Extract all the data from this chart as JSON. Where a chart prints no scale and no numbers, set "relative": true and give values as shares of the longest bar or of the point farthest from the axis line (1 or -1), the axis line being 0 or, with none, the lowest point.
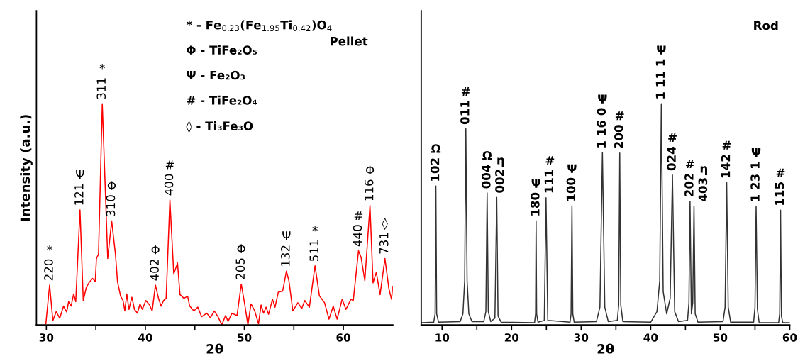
{
  "chart_data": [
    {
      "type": "line",
      "relative": true,
      "title": "Pellet",
      "xlabel": "2θ",
      "ylabel": "Intensity (a.u.)",
      "xlim": [
        29,
        65
      ],
      "xticks": [
        30,
        {
          "value": 35,
          "label": null
        },
        40,
        {
          "value": 45,
          "label": null
        },
        50,
        {
          "value": 55,
          "label": null
        },
        60
      ],
      "tick_labels": "x",
      "series": [
        {
          "color": "#ff0000",
          "x": [
            29.95,
            30.33,
            30.66,
            31.0,
            31.35,
            31.74,
            32.05,
            32.25,
            32.5,
            32.76,
            32.97,
            33.4,
            33.73,
            34.04,
            34.3,
            34.68,
            34.94,
            35.06,
            35.27,
            35.65,
            36.2,
            36.6,
            36.98,
            37.19,
            37.5,
            37.75,
            37.93,
            38.13,
            38.34,
            38.64,
            38.9,
            39.2,
            39.46,
            39.7,
            40.05,
            40.43,
            40.69,
            41.02,
            41.33,
            41.59,
            41.84,
            42.1,
            42.48,
            42.87,
            43.25,
            43.5,
            43.9,
            44.27,
            44.48,
            44.9,
            45.3,
            45.68,
            46.2,
            46.57,
            46.96,
            47.34,
            47.72,
            48.1,
            48.36,
            48.75,
            49.26,
            49.69,
            50.03,
            50.36,
            50.67,
            51.05,
            51.43,
            51.69,
            51.94,
            52.2,
            52.45,
            52.84,
            53.1,
            53.43,
            53.87,
            54.25,
            54.5,
            54.9,
            55.4,
            55.8,
            56.1,
            56.57,
            57.14,
            57.58,
            58.1,
            58.55,
            58.98,
            59.37,
            59.88,
            60.26,
            60.77,
            61.0,
            61.53,
            61.79,
            62.17,
            62.69,
            63.0,
            63.33,
            63.71,
            64.2,
            64.6,
            64.86,
            65.0
          ],
          "values": [
            0.005,
            0.18,
            0.02,
            0.06,
            0.03,
            0.085,
            0.058,
            0.105,
            0.085,
            0.14,
            0.105,
            0.52,
            0.11,
            0.17,
            0.19,
            0.21,
            0.195,
            0.3,
            0.32,
            1.0,
            0.3,
            0.47,
            0.32,
            0.195,
            0.13,
            0.11,
            0.063,
            0.14,
            0.07,
            0.125,
            0.07,
            0.053,
            0.095,
            0.07,
            0.11,
            0.09,
            0.063,
            0.18,
            0.12,
            0.085,
            0.11,
            0.12,
            0.565,
            0.23,
            0.28,
            0.137,
            0.12,
            0.13,
            0.085,
            0.063,
            0.08,
            0.037,
            0.053,
            0.032,
            0.063,
            0.037,
            0.0,
            0.042,
            0.016,
            0.053,
            0.042,
            0.185,
            0.095,
            0.0,
            0.095,
            0.063,
            0.005,
            0.09,
            0.053,
            0.08,
            0.048,
            0.116,
            0.08,
            0.148,
            0.153,
            0.243,
            0.2,
            0.063,
            0.1,
            0.074,
            0.11,
            0.08,
            0.267,
            0.132,
            0.1,
            0.026,
            0.085,
            0.026,
            0.116,
            0.07,
            0.116,
            0.11,
            0.335,
            0.306,
            0.2,
            0.54,
            0.19,
            0.238,
            0.137,
            0.3,
            0.164,
            0.116,
            0.174
          ]
        }
      ],
      "annotations": [
        "* - Fe$_{0.23}$(Fe$_{1.95}$Ti$_{0.42}$)O$_{4}$",
        "Φ - TiFe₂O₅",
        "Ψ - Fe₂O₃",
        "# - TiFe₂O₄",
        "◊ - Ti₃Fe₃O",
        {
          "text": "220",
          "x": 30.33,
          "y": 0.18
        },
        "*",
        {
          "text": "121",
          "x": 33.4,
          "y": 0.52
        },
        "Ψ",
        {
          "text": "311",
          "x": 35.65,
          "y": 1.0
        },
        "*",
        {
          "text": "310",
          "x": 36.6,
          "y": 0.47
        },
        "Φ",
        {
          "text": "402",
          "x": 41.02,
          "y": 0.18
        },
        "Φ",
        {
          "text": "400",
          "x": 42.48,
          "y": 0.565
        },
        "#",
        {
          "text": "205",
          "x": 49.69,
          "y": 0.185
        },
        "Φ",
        {
          "text": "132",
          "x": 54.25,
          "y": 0.243
        },
        "Ψ",
        {
          "text": "511",
          "x": 57.14,
          "y": 0.267
        },
        "*",
        {
          "text": "440",
          "x": 61.53,
          "y": 0.335
        },
        "#",
        {
          "text": "116",
          "x": 62.69,
          "y": 0.54
        },
        "Φ",
        {
          "text": "731",
          "x": 64.2,
          "y": 0.3
        },
        "◊"
      ]
    },
    {
      "type": "line",
      "relative": true,
      "title": "Rod",
      "xlabel": "2θ",
      "xlim": [
        7,
        60
      ],
      "xticks": [
        10,
        {
          "value": 15,
          "label": null
        },
        20,
        {
          "value": 25,
          "label": null
        },
        30,
        {
          "value": 35,
          "label": null
        },
        40,
        {
          "value": 45,
          "label": null
        },
        50,
        {
          "value": 55,
          "label": null
        },
        60
      ],
      "tick_labels": "x",
      "series": [
        {
          "color": "#333333",
          "x": [
            7.1,
            8.8,
            9.0,
            9.11,
            9.22,
            9.5,
            12.6,
            13.0,
            13.25,
            13.42,
            13.6,
            13.85,
            14.3,
            16.0,
            16.3,
            16.48,
            16.65,
            17.0,
            17.6,
            17.86,
            18.05,
            18.5,
            23.3,
            23.45,
            23.52,
            23.6,
            23.8,
            24.7,
            24.95,
            25.2,
            28.4,
            28.55,
            28.68,
            28.8,
            29.0,
            32.2,
            32.7,
            33.06,
            33.4,
            33.9,
            35.2,
            35.4,
            35.55,
            35.7,
            36.0,
            40.0,
            40.9,
            41.3,
            41.53,
            41.8,
            42.3,
            42.8,
            43.13,
            43.45,
            44.0,
            45.3,
            45.5,
            45.66,
            45.85,
            46.05,
            46.23,
            46.4,
            46.8,
            50.4,
            50.7,
            50.93,
            51.15,
            51.5,
            54.8,
            55.0,
            55.16,
            55.35,
            55.6,
            58.4,
            58.55,
            58.68,
            58.8,
            59.0,
            60.0
          ],
          "values": [
            0.01,
            0.012,
            0.05,
            0.628,
            0.05,
            0.012,
            0.015,
            0.05,
            0.2,
            0.887,
            0.2,
            0.05,
            0.015,
            0.015,
            0.06,
            0.597,
            0.06,
            0.015,
            0.03,
            0.577,
            0.04,
            0.012,
            0.01,
            0.05,
            0.471,
            0.05,
            0.012,
            0.02,
            0.575,
            0.02,
            0.012,
            0.05,
            0.538,
            0.05,
            0.012,
            0.015,
            0.08,
            0.779,
            0.08,
            0.015,
            0.02,
            0.09,
            0.777,
            0.09,
            0.015,
            0.012,
            0.06,
            0.2,
            1.0,
            0.15,
            0.05,
            0.12,
            0.678,
            0.06,
            0.015,
            0.02,
            0.1,
            0.559,
            0.05,
            0.1,
            0.538,
            0.05,
            0.012,
            0.015,
            0.08,
            0.643,
            0.08,
            0.012,
            0.012,
            0.08,
            0.536,
            0.07,
            0.01,
            0.01,
            0.05,
            0.519,
            0.04,
            0.01,
            0.01
          ]
        }
      ],
      "annotations": [
        {
          "text": "102",
          "x": 9.11,
          "y": 0.628
        },
        "Ω",
        {
          "text": "011",
          "x": 13.42,
          "y": 0.887
        },
        "#",
        {
          "text": "004",
          "x": 16.48,
          "y": 0.597
        },
        "Ω",
        {
          "text": "002",
          "x": 17.86,
          "y": 0.577
        },
        "η",
        {
          "text": "180",
          "x": 23.52,
          "y": 0.471
        },
        "Ψ",
        {
          "text": "111",
          "x": 24.95,
          "y": 0.575
        },
        "#",
        {
          "text": "100",
          "x": 28.68,
          "y": 0.538
        },
        "Ψ",
        {
          "text": "1 16 0",
          "x": 33.06,
          "y": 0.779
        },
        "Ψ",
        {
          "text": "200",
          "x": 35.55,
          "y": 0.777
        },
        "#",
        {
          "text": "1 11 1",
          "x": 41.53,
          "y": 1.0
        },
        "Ψ",
        {
          "text": "024",
          "x": 43.13,
          "y": 0.678
        },
        "#",
        {
          "text": "202",
          "x": 45.66,
          "y": 0.559
        },
        "#",
        {
          "text": "403",
          "x": 46.23,
          "y": 0.538
        },
        "η",
        {
          "text": "142",
          "x": 50.93,
          "y": 0.643
        },
        "#",
        {
          "text": "1 23 1",
          "x": 55.16,
          "y": 0.536
        },
        "Ψ",
        {
          "text": "115",
          "x": 58.68,
          "y": 0.519
        },
        "#"
      ]
    }
  ]
}
